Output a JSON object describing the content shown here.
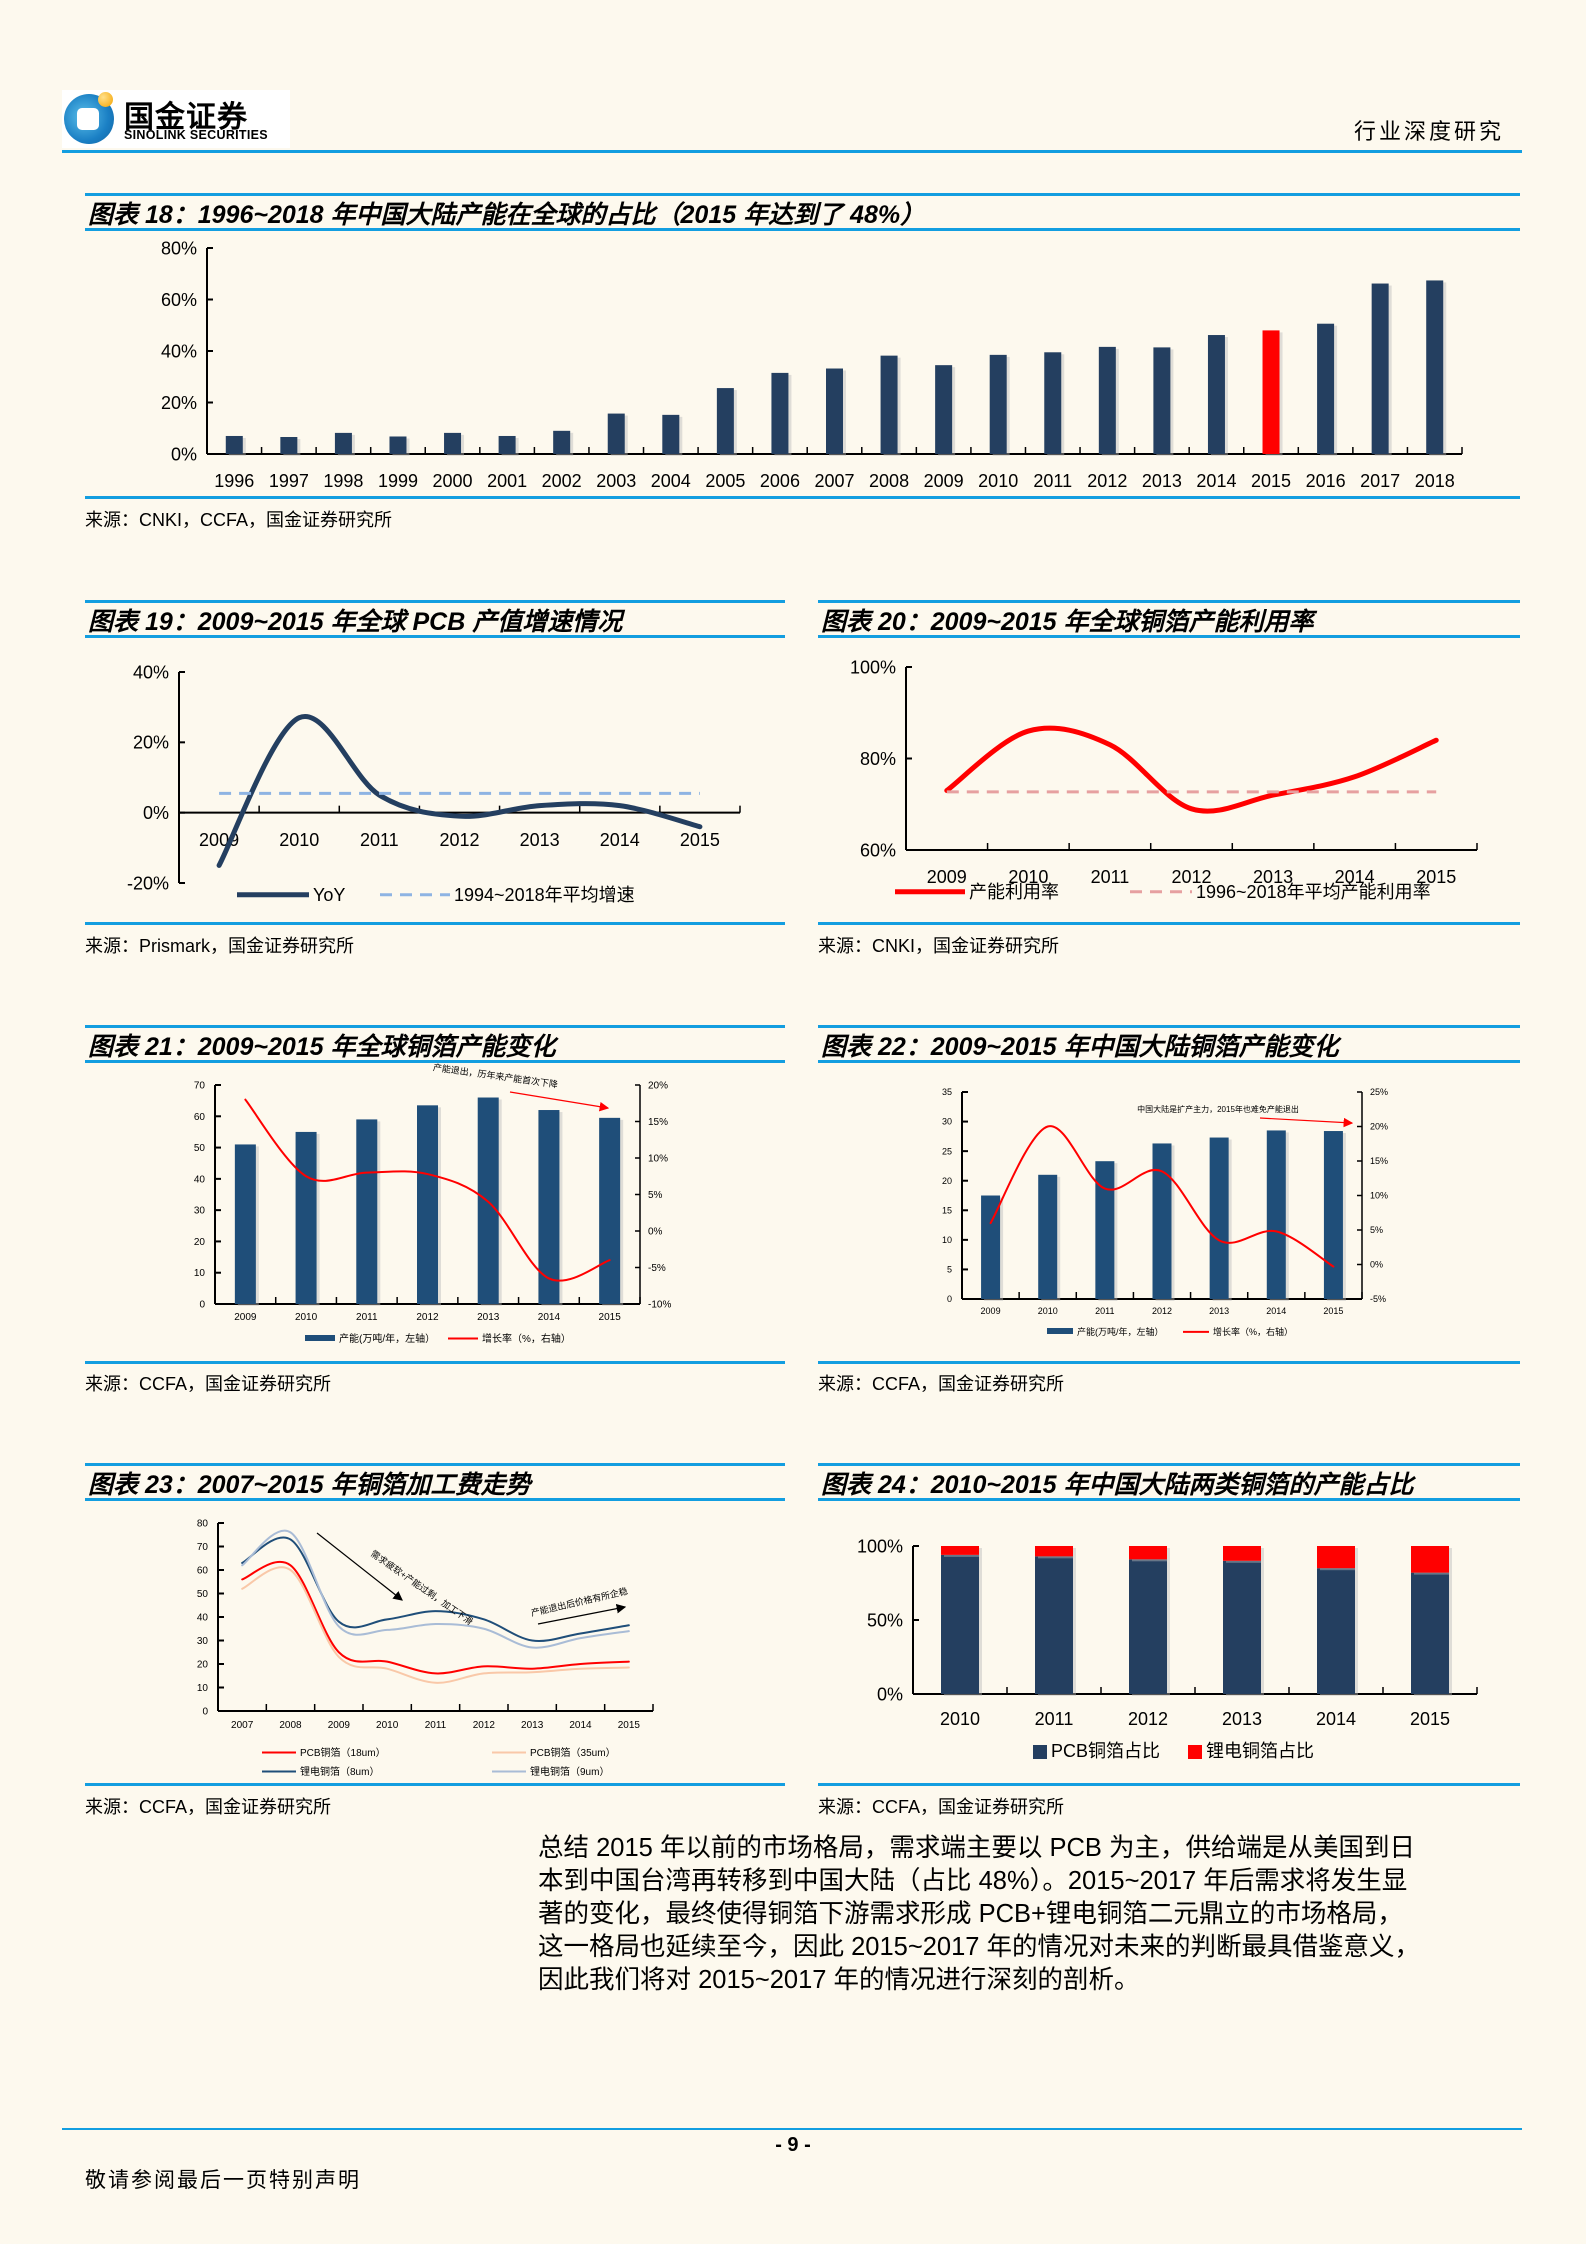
{
  "header": {
    "logo_cn": "国金证券",
    "logo_en": "SINOLINK SECURITIES",
    "report_type": "行业深度研究"
  },
  "figures": [
    {
      "title": "图表 18：1996~2018 年中国大陆产能在全球的占比（2015 年达到了 48%）",
      "source": "来源：CNKI，CCFA，国金证券研究所"
    },
    {
      "title": "图表 19：2009~2015 年全球 PCB 产值增速情况",
      "source": "来源：Prismark，国金证券研究所"
    },
    {
      "title": "图表 20：2009~2015 年全球铜箔产能利用率",
      "source": "来源：CNKI，国金证券研究所"
    },
    {
      "title": "图表 21：2009~2015 年全球铜箔产能变化",
      "source": "来源：CCFA，国金证券研究所"
    },
    {
      "title": "图表 22：2009~2015 年中国大陆铜箔产能变化",
      "source": "来源：CCFA，国金证券研究所"
    },
    {
      "title": "图表 23：2007~2015 年铜箔加工费走势",
      "source": "来源：CCFA，国金证券研究所"
    },
    {
      "title": "图表 24：2010~2015 年中国大陆两类铜箔的产能占比",
      "source": "来源：CCFA，国金证券研究所"
    }
  ],
  "chart_data": [
    {
      "type": "bar",
      "categories": [
        "1996",
        "1997",
        "1998",
        "1999",
        "2000",
        "2001",
        "2002",
        "2003",
        "2004",
        "2005",
        "2006",
        "2007",
        "2008",
        "2009",
        "2010",
        "2011",
        "2012",
        "2013",
        "2014",
        "2015",
        "2016",
        "2017",
        "2018"
      ],
      "ylim": [
        0,
        80
      ],
      "yticks": [
        0,
        20,
        40,
        60,
        80
      ],
      "ytick_labels": [
        "0%",
        "20%",
        "40%",
        "60%",
        "80%"
      ],
      "series": [
        {
          "kind": "bar",
          "color": "#243f60",
          "values": [
            7.0,
            6.6,
            8.2,
            6.8,
            8.2,
            7.0,
            9.0,
            15.7,
            15.2,
            25.6,
            31.5,
            33.2,
            38.2,
            34.5,
            38.5,
            39.5,
            41.6,
            41.4,
            46.2,
            48.0,
            50.6,
            66.2,
            67.4
          ]
        }
      ],
      "highlight": {
        "category": "2015",
        "color": "#ff0000"
      }
    },
    {
      "type": "line",
      "categories": [
        "2009",
        "2010",
        "2011",
        "2012",
        "2013",
        "2014",
        "2015"
      ],
      "ylim": [
        -20,
        40
      ],
      "yticks": [
        -20,
        0,
        20,
        40
      ],
      "ytick_labels": [
        "-20%",
        "0%",
        "20%",
        "40%"
      ],
      "series": [
        {
          "kind": "line",
          "name": "YoY",
          "color": "#243f60",
          "values": [
            -15,
            27,
            5,
            -1,
            2,
            2,
            -4
          ]
        },
        {
          "kind": "hline",
          "name": "1994~2018年平均增速",
          "color": "#8eb4e3",
          "value": 5.5
        }
      ]
    },
    {
      "type": "line",
      "categories": [
        "2009",
        "2010",
        "2011",
        "2012",
        "2013",
        "2014",
        "2015"
      ],
      "ylim": [
        60,
        100
      ],
      "yticks": [
        60,
        80,
        100
      ],
      "ytick_labels": [
        "60%",
        "80%",
        "100%"
      ],
      "series": [
        {
          "kind": "line",
          "name": "产能利用率",
          "color": "#ff0000",
          "values": [
            73,
            86,
            83,
            69,
            72,
            76,
            84
          ]
        },
        {
          "kind": "hline",
          "name": "1996~2018年平均产能利用率",
          "color": "#e6a0a0",
          "value": 72.7
        }
      ]
    },
    {
      "type": "bar",
      "categories": [
        "2009",
        "2010",
        "2011",
        "2012",
        "2013",
        "2014",
        "2015"
      ],
      "ylim": [
        0,
        70
      ],
      "yticks": [
        0,
        10,
        20,
        30,
        40,
        50,
        60,
        70
      ],
      "ytick_labels": [
        "0",
        "10",
        "20",
        "30",
        "40",
        "50",
        "60",
        "70"
      ],
      "y2lim": [
        -10,
        20
      ],
      "y2ticks": [
        -10,
        -5,
        0,
        5,
        10,
        15,
        20
      ],
      "y2tick_labels": [
        "-10%",
        "-5%",
        "0%",
        "5%",
        "10%",
        "15%",
        "20%"
      ],
      "series": [
        {
          "kind": "bar",
          "name": "产能(万吨/年，左轴）",
          "color": "#1f4e79",
          "values": [
            51,
            55,
            59,
            63.5,
            66,
            62,
            59.5
          ]
        },
        {
          "kind": "line",
          "axis": "right",
          "name": "增长率（%，右轴）",
          "color": "#ff0000",
          "values": [
            18,
            7.5,
            8,
            7.8,
            4,
            -6.5,
            -4
          ]
        }
      ],
      "annotations": [
        {
          "text": "产能退出，历年来产能首次下降"
        }
      ]
    },
    {
      "type": "bar",
      "categories": [
        "2009",
        "2010",
        "2011",
        "2012",
        "2013",
        "2014",
        "2015"
      ],
      "ylim": [
        0,
        35
      ],
      "yticks": [
        0,
        5,
        10,
        15,
        20,
        25,
        30,
        35
      ],
      "ytick_labels": [
        "0",
        "5",
        "10",
        "15",
        "20",
        "25",
        "30",
        "35"
      ],
      "y2lim": [
        -5,
        25
      ],
      "y2ticks": [
        -5,
        0,
        5,
        10,
        15,
        20,
        25
      ],
      "y2tick_labels": [
        "-5%",
        "0%",
        "5%",
        "10%",
        "15%",
        "20%",
        "25%"
      ],
      "series": [
        {
          "kind": "bar",
          "name": "产能(万吨/年，左轴）",
          "color": "#1f4e79",
          "values": [
            17.5,
            21,
            23.3,
            26.3,
            27.3,
            28.5,
            28.4
          ]
        },
        {
          "kind": "line",
          "axis": "right",
          "name": "增长率（%，右轴）",
          "color": "#ff0000",
          "values": [
            6,
            20,
            11,
            13.5,
            3.5,
            4.8,
            -0.3
          ]
        }
      ],
      "annotations": [
        {
          "text": "中国大陆是扩产主力，2015年也难免产能退出"
        }
      ]
    },
    {
      "type": "line",
      "categories": [
        "2007",
        "2008",
        "2009",
        "2010",
        "2011",
        "2012",
        "2013",
        "2014",
        "2015"
      ],
      "ylim": [
        0,
        80
      ],
      "yticks": [
        0,
        10,
        20,
        30,
        40,
        50,
        60,
        70,
        80
      ],
      "ytick_labels": [
        "0",
        "10",
        "20",
        "30",
        "40",
        "50",
        "60",
        "70",
        "80"
      ],
      "series": [
        {
          "kind": "line",
          "name": "PCB铜箔（18um）",
          "color": "#ff0000",
          "values": [
            56,
            62,
            25,
            21,
            16,
            19,
            18,
            20,
            21
          ]
        },
        {
          "kind": "line",
          "name": "PCB铜箔（35um）",
          "color": "#f9c8a8",
          "values": [
            52,
            60,
            23,
            18,
            12,
            16,
            16.5,
            18,
            18.5
          ]
        },
        {
          "kind": "line",
          "name": "锂电铜箔（8um）",
          "color": "#1f4e79",
          "values": [
            63,
            73,
            38,
            39,
            42.5,
            39,
            30,
            33,
            36.5
          ]
        },
        {
          "kind": "line",
          "name": "锂电铜箔（9um）",
          "color": "#a9bcd6",
          "values": [
            62,
            76,
            36,
            34.5,
            37,
            35,
            27,
            31,
            34
          ]
        }
      ],
      "annotations": [
        {
          "text": "需求疲软+产能过剩，加工下滑"
        },
        {
          "text": "产能退出后价格有所企稳"
        }
      ]
    },
    {
      "type": "bar",
      "stacked": true,
      "categories": [
        "2010",
        "2011",
        "2012",
        "2013",
        "2014",
        "2015"
      ],
      "ylim": [
        0,
        100
      ],
      "yticks": [
        0,
        50,
        100
      ],
      "ytick_labels": [
        "0%",
        "50%",
        "100%"
      ],
      "series": [
        {
          "kind": "bar",
          "name": "PCB铜箔占比",
          "color": "#243f60",
          "values": [
            94,
            93,
            91,
            90,
            85,
            82
          ]
        },
        {
          "kind": "bar",
          "name": "锂电铜箔占比",
          "color": "#ff0000",
          "values": [
            6,
            7,
            9,
            10,
            15,
            18
          ]
        }
      ]
    }
  ],
  "paragraph": [
    "总结 2015 年以前的市场格局，需求端主要以 PCB 为主，供给端是从美国到日",
    "本到中国台湾再转移到中国大陆（占比 48%）。2015~2017 年后需求将发生显",
    "著的变化，最终使得铜箔下游需求形成 PCB+锂电铜箔二元鼎立的市场格局，",
    "这一格局也延续至今，因此 2015~2017 年的情况对未来的判断最具借鉴意义，",
    "因此我们将对 2015~2017 年的情况进行深刻的剖析。"
  ],
  "footer": {
    "page": "- 9 -",
    "disclaimer": "敬请参阅最后一页特别声明"
  }
}
